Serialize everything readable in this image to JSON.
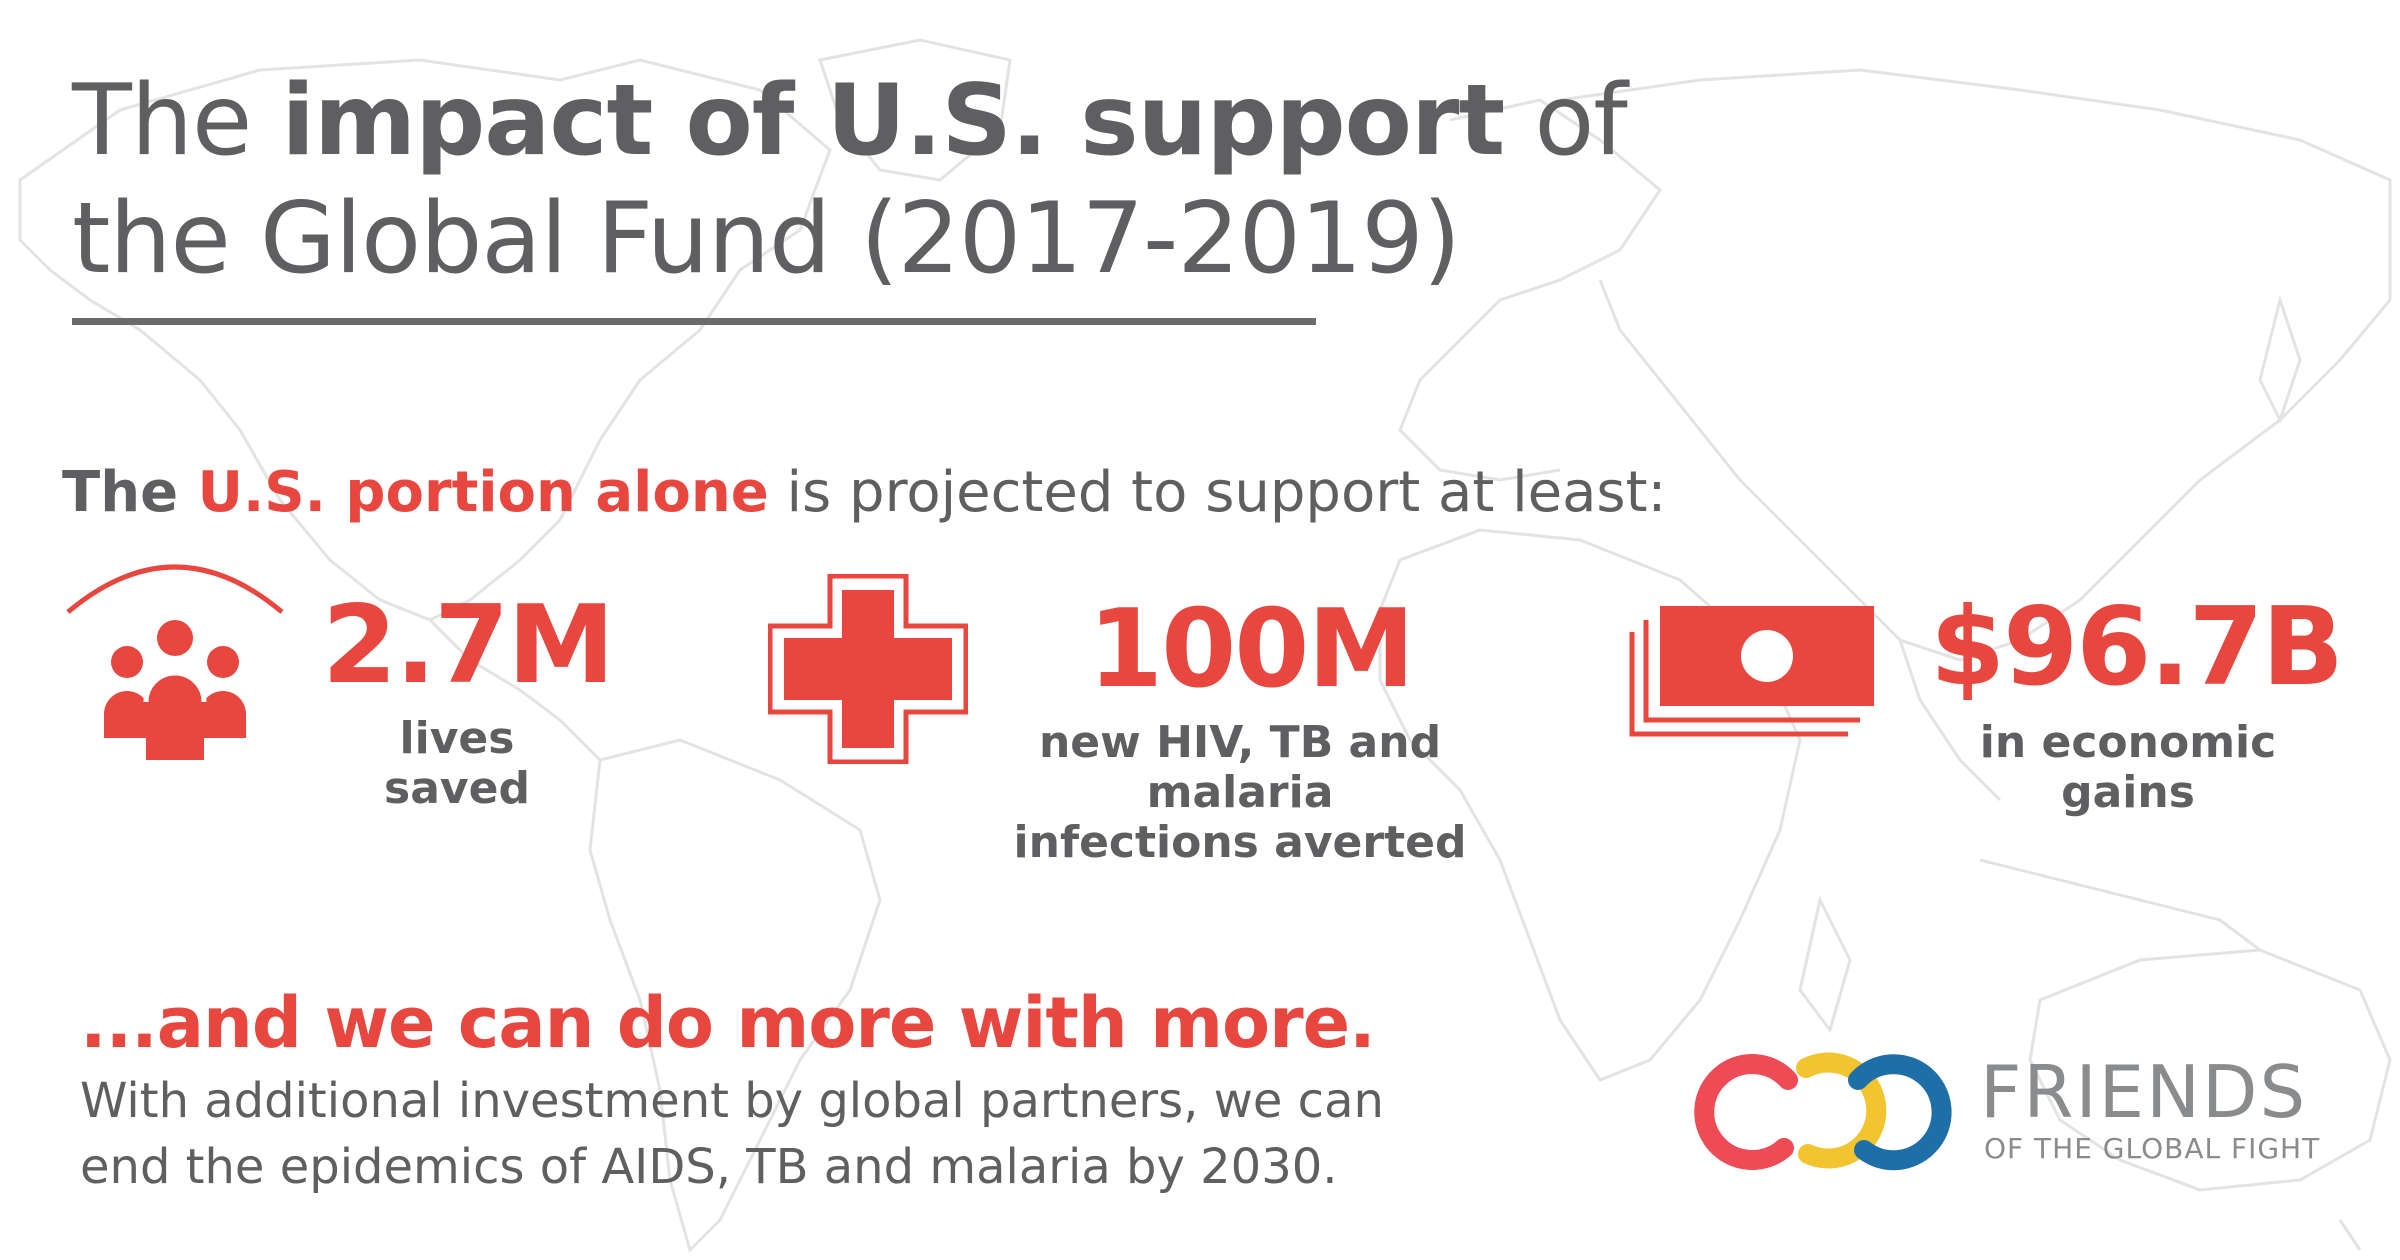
{
  "title": {
    "prefix": "The ",
    "emphasis": "impact of U.S. support",
    "suffix": " of",
    "line2": "the Global Fund (2017-2019)"
  },
  "intro": {
    "prefix": "The ",
    "accent": "U.S. portion alone",
    "suffix": " is projected to support at least:"
  },
  "stats": [
    {
      "value": "2.7M",
      "label": "lives saved",
      "icon": "people-group-icon"
    },
    {
      "value": "100M",
      "label_line1": "new HIV, TB and malaria",
      "label_line2": "infections averted",
      "icon": "medical-cross-icon"
    },
    {
      "value": "$96.7B",
      "label": "in economic gains",
      "icon": "money-stack-icon"
    }
  ],
  "call_to_action": "...and we can do more with more.",
  "closing": {
    "line1": "With additional investment by global partners, we can",
    "line2": "end the epidemics of AIDS, TB and malaria by 2030."
  },
  "logo": {
    "name": "FRIENDS",
    "subtitle": "OF THE GLOBAL FIGHT",
    "icon": "interlocking-rings-icon"
  },
  "colors": {
    "accent": "#e8473f",
    "text": "#5f5f61",
    "logo_red": "#ef4b57",
    "logo_yellow": "#f2c530",
    "logo_blue": "#1e6fa8",
    "map": "#e3e3e3"
  }
}
